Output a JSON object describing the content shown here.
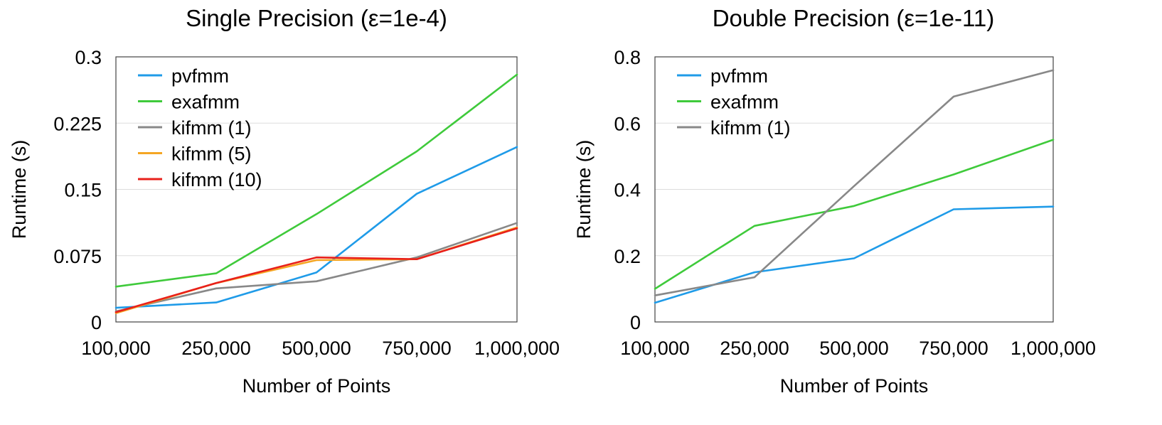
{
  "colors": {
    "pvfmm": "#1f9be8",
    "exafmm": "#3fca3b",
    "kifmm (1)": "#888888",
    "kifmm (5)": "#f5a623",
    "kifmm (10)": "#e8201b"
  },
  "chart_data": [
    {
      "type": "line",
      "title": "Single Precision (ε=1e-4)",
      "xlabel": "Number of Points",
      "ylabel": "Runtime (s)",
      "x": [
        "100,000",
        "250,000",
        "500,000",
        "750,000",
        "1,000,000"
      ],
      "ylim": [
        0,
        0.3
      ],
      "yticks": [
        "0",
        "0.075",
        "0.15",
        "0.225",
        "0.3"
      ],
      "ytick_values": [
        0,
        0.075,
        0.15,
        0.225,
        0.3
      ],
      "grid": true,
      "legend_position": "top-left",
      "series": [
        {
          "name": "pvfmm",
          "values": [
            0.016,
            0.022,
            0.056,
            0.145,
            0.198
          ]
        },
        {
          "name": "exafmm",
          "values": [
            0.04,
            0.055,
            0.122,
            0.193,
            0.28
          ]
        },
        {
          "name": "kifmm (1)",
          "values": [
            0.012,
            0.038,
            0.046,
            0.073,
            0.112
          ]
        },
        {
          "name": "kifmm (5)",
          "values": [
            0.01,
            0.044,
            0.07,
            0.071,
            0.107
          ]
        },
        {
          "name": "kifmm (10)",
          "values": [
            0.011,
            0.044,
            0.073,
            0.071,
            0.106
          ]
        }
      ]
    },
    {
      "type": "line",
      "title": "Double Precision (ε=1e-11)",
      "xlabel": "Number of Points",
      "ylabel": "Runtime (s)",
      "x": [
        "100,000",
        "250,000",
        "500,000",
        "750,000",
        "1,000,000"
      ],
      "ylim": [
        0,
        0.8
      ],
      "yticks": [
        "0",
        "0.2",
        "0.4",
        "0.6",
        "0.8"
      ],
      "ytick_values": [
        0,
        0.2,
        0.4,
        0.6,
        0.8
      ],
      "grid": true,
      "legend_position": "top-left",
      "series": [
        {
          "name": "pvfmm",
          "values": [
            0.058,
            0.15,
            0.192,
            0.34,
            0.348
          ]
        },
        {
          "name": "exafmm",
          "values": [
            0.1,
            0.29,
            0.35,
            0.445,
            0.55
          ]
        },
        {
          "name": "kifmm (1)",
          "values": [
            0.08,
            0.135,
            0.41,
            0.68,
            0.76
          ]
        }
      ]
    }
  ]
}
